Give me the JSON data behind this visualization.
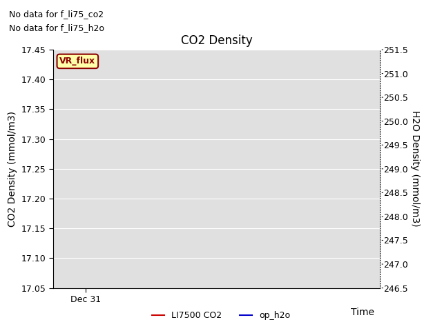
{
  "title": "CO2 Density",
  "left_ylabel": "CO2 Density (mmol/m3)",
  "right_ylabel": "H2O Density (mmol/m3)",
  "xlabel": "Time",
  "left_ylim": [
    17.05,
    17.45
  ],
  "right_ylim": [
    246.5,
    251.5
  ],
  "left_yticks": [
    17.05,
    17.1,
    17.15,
    17.2,
    17.25,
    17.3,
    17.35,
    17.4,
    17.45
  ],
  "right_yticks": [
    246.5,
    247.0,
    247.5,
    248.0,
    248.5,
    249.0,
    249.5,
    250.0,
    250.5,
    251.0,
    251.5
  ],
  "xtick_pos": 0.1,
  "xticklabel": "Dec 31",
  "xlim": [
    0,
    1
  ],
  "no_data_text1": "No data for f_li75_co2",
  "no_data_text2": "No data for f_li75_h2o",
  "vr_flux_label": "VR_flux",
  "vr_flux_bg": "#ffffaa",
  "vr_flux_border": "#8B0000",
  "vr_flux_text_color": "#8B0000",
  "legend_entries": [
    {
      "label": "LI7500 CO2",
      "color": "#cc0000",
      "linestyle": "-"
    },
    {
      "label": "op_h2o",
      "color": "#0000cc",
      "linestyle": "-"
    }
  ],
  "plot_bg_color": "#e0e0e0",
  "fig_bg_color": "#ffffff",
  "grid_color": "#ffffff",
  "title_fontsize": 12,
  "axis_label_fontsize": 10,
  "tick_fontsize": 9,
  "no_data_fontsize": 9,
  "legend_fontsize": 9
}
